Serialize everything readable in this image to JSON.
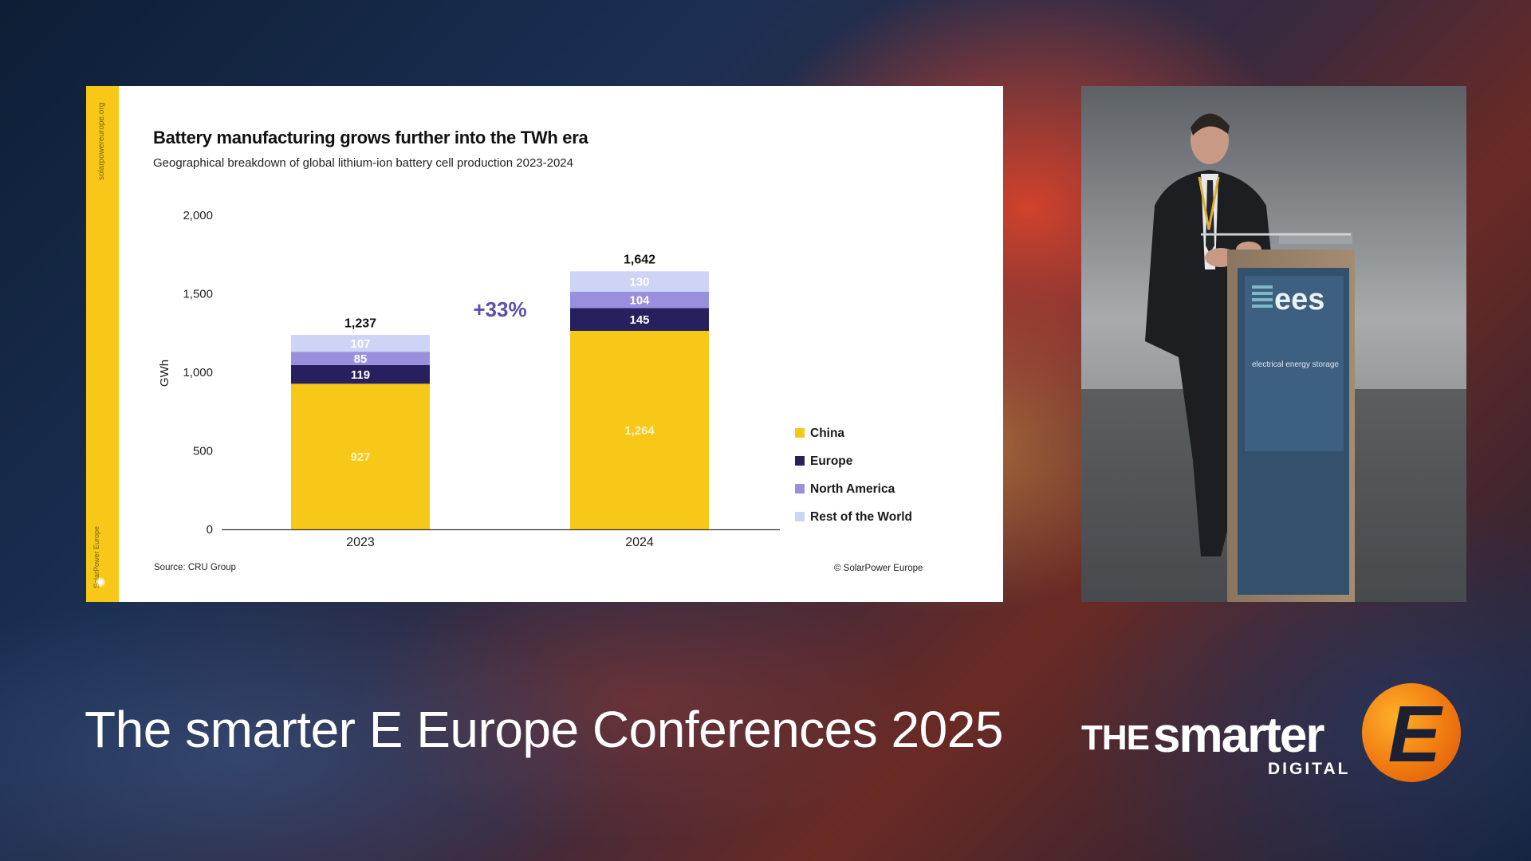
{
  "slide": {
    "stripe_top_text": "solarpowereurope.org",
    "stripe_logo_text": "SolarPower Europe",
    "source": "Source: CRU Group",
    "copyright": "© SolarPower Europe"
  },
  "chart_data": {
    "type": "bar",
    "stacked": true,
    "title": "Battery manufacturing grows further into the TWh era",
    "subtitle": "Geographical breakdown of global lithium-ion battery cell production 2023-2024",
    "ylabel": "GWh",
    "xlabel": "",
    "ylim": [
      0,
      2000
    ],
    "yticks": [
      "2,000",
      "1,500",
      "1,000",
      "500",
      "0"
    ],
    "ytick_values": [
      2000,
      1500,
      1000,
      500,
      0
    ],
    "categories": [
      "2023",
      "2024"
    ],
    "totals": [
      "1,237",
      "1,642"
    ],
    "total_values": [
      1237,
      1642
    ],
    "growth_annotation": "+33%",
    "grid": false,
    "legend_position": "right",
    "series": [
      {
        "name": "China",
        "values": [
          927,
          1264
        ],
        "labels": [
          "927",
          "1,264"
        ],
        "color": "#f7c818",
        "label_color": "#fdf3c4"
      },
      {
        "name": "Europe",
        "values": [
          119,
          145
        ],
        "labels": [
          "119",
          "145"
        ],
        "color": "#26215e",
        "label_color": "#ffffff"
      },
      {
        "name": "North America",
        "values": [
          85,
          104
        ],
        "labels": [
          "85",
          "104"
        ],
        "color": "#9a8fdc",
        "label_color": "#ffffff"
      },
      {
        "name": "Rest of the World",
        "values": [
          107,
          130
        ],
        "labels": [
          "107",
          "130"
        ],
        "color": "#cdd4f5",
        "label_color": "#ffffff"
      }
    ]
  },
  "video": {
    "podium_logo": "ees",
    "podium_tagline": "electrical energy storage"
  },
  "footer": {
    "conference_title": "The smarter E Europe Conferences 2025",
    "brand_the": "THE",
    "brand_smarter": "smarter",
    "brand_digital": "DIGITAL",
    "brand_e": "E"
  }
}
